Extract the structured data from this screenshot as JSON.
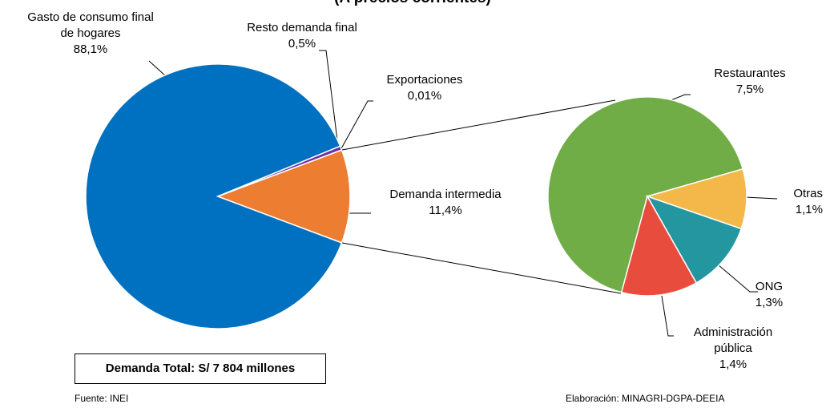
{
  "chart_data": [
    {
      "type": "pie",
      "subtitle": "(A precios corrientes)",
      "categories": [
        "Gasto de consumo final\nde hogares",
        "Resto demanda final",
        "Exportaciones",
        "Demanda intermedia"
      ],
      "values": [
        88.1,
        0.5,
        0.01,
        11.4
      ],
      "value_labels": [
        "88,1%",
        "0,5%",
        "0,01%",
        "11,4%"
      ],
      "colors": [
        "#0070c0",
        "#7030a0",
        "#4f81bd",
        "#ed7d31"
      ],
      "annotation": "Demanda Total: S/ 7 804 millones",
      "source": "Fuente: INEI",
      "credit": "Elaboración: MINAGRI-DGPA-DEEIA"
    },
    {
      "type": "pie",
      "categories": [
        "Restaurantes",
        "Otras",
        "ONG",
        "Administración\npública"
      ],
      "values": [
        7.5,
        1.1,
        1.3,
        1.4
      ],
      "value_labels": [
        "7,5%",
        "1,1%",
        "1,3%",
        "1,4%"
      ],
      "colors": [
        "#70ad47",
        "#f4b84a",
        "#2396a0",
        "#e84c3d"
      ]
    }
  ]
}
